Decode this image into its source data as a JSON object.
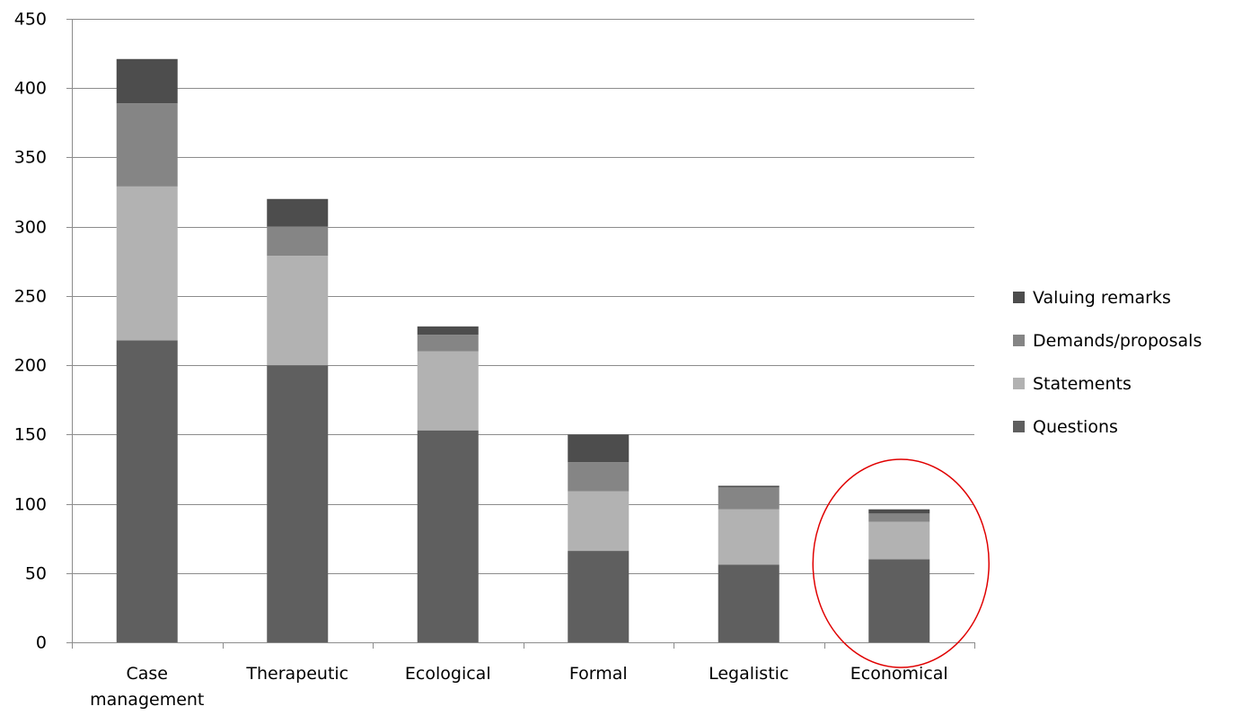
{
  "chart_data": {
    "type": "bar",
    "stacked": true,
    "title": "",
    "xlabel": "",
    "ylabel": "",
    "ylim": [
      0,
      450
    ],
    "yticks": [
      0,
      50,
      100,
      150,
      200,
      250,
      300,
      350,
      400,
      450
    ],
    "grid": true,
    "legend_position": "right",
    "categories": [
      [
        "Case",
        "management"
      ],
      [
        "Therapeutic"
      ],
      [
        "Ecological"
      ],
      [
        "Formal"
      ],
      [
        "Legalistic"
      ],
      [
        "Economical"
      ]
    ],
    "series": [
      {
        "name": "Questions",
        "color": "#5f5f5f",
        "values": [
          218,
          200,
          153,
          66,
          56,
          60
        ]
      },
      {
        "name": "Statements",
        "color": "#b2b2b2",
        "values": [
          111,
          79,
          57,
          43,
          40,
          27
        ]
      },
      {
        "name": "Demands/proposals",
        "color": "#858585",
        "values": [
          60,
          21,
          12,
          21,
          16,
          6
        ]
      },
      {
        "name": "Valuing remarks",
        "color": "#4d4d4d",
        "values": [
          32,
          20,
          6,
          20,
          1,
          3
        ]
      }
    ],
    "legend_order": [
      "Valuing remarks",
      "Demands/proposals",
      "Statements",
      "Questions"
    ],
    "highlight": {
      "category": "Economical",
      "shape": "ellipse",
      "color": "#e00000"
    }
  }
}
